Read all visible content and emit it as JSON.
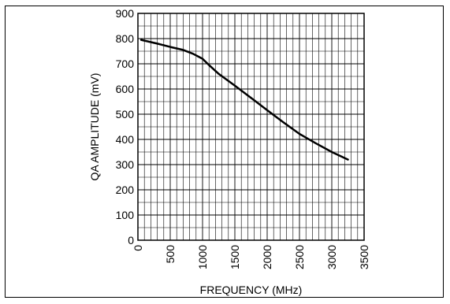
{
  "chart_data": {
    "type": "line",
    "title": "",
    "xlabel": "FREQUENCY (MHz)",
    "ylabel": "QA AMPLITUDE (mV)",
    "xlim": [
      0,
      3500
    ],
    "ylim": [
      0,
      900
    ],
    "grid": true,
    "grid_minor": {
      "x_step": 100,
      "y_step": 50
    },
    "x_ticks": [
      0,
      500,
      1000,
      1500,
      2000,
      2500,
      3000,
      3500
    ],
    "x_tick_labels": [
      "0",
      "500",
      "1000",
      "1500",
      "2000",
      "2500",
      "3000",
      "3500"
    ],
    "y_ticks": [
      0,
      100,
      200,
      300,
      400,
      500,
      600,
      700,
      800,
      900
    ],
    "y_tick_labels": [
      "0",
      "100",
      "200",
      "300",
      "400",
      "500",
      "600",
      "700",
      "800",
      "900"
    ],
    "series": [
      {
        "color": "#000000",
        "x": [
          50,
          300,
          500,
          700,
          850,
          1000,
          1100,
          1250,
          1500,
          1750,
          2000,
          2250,
          2500,
          2750,
          3000,
          3250
        ],
        "y": [
          795,
          780,
          767,
          755,
          740,
          720,
          695,
          660,
          613,
          565,
          516,
          468,
          422,
          385,
          350,
          320
        ]
      }
    ]
  }
}
